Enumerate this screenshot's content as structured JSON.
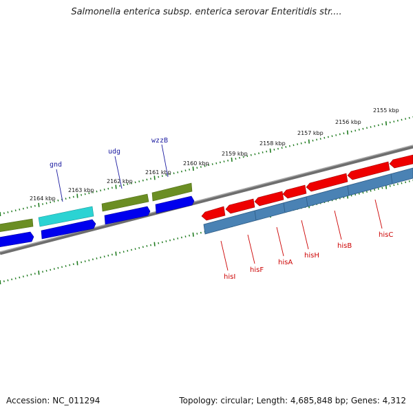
{
  "header": {
    "title": "Salmonella enterica subsp. enterica serovar Enteritidis str...."
  },
  "footer": {
    "accession": "Accession: NC_011294",
    "summary": "Topology: circular; Length: 4,685,848 bp; Genes: 4,312"
  },
  "colors": {
    "backbone": "#777777",
    "tick": "#1e7a1e",
    "gene_olive": "#6b8e23",
    "gene_cyan": "#2bd3d3",
    "gene_blue": "#0000ee",
    "gene_red": "#ee0000",
    "gene_steel": "#4a82b4",
    "label_top": "#1a1aa0",
    "label_bottom": "#cc0000"
  },
  "coordinate_labels": [
    "2155 kbp",
    "2156 kbp",
    "2157 kbp",
    "2158 kbp",
    "2159 kbp",
    "2160 kbp",
    "2161 kbp",
    "2162 kbp",
    "2163 kbp",
    "2164 kbp"
  ],
  "gene_labels_upper": [
    "gnd",
    "udg",
    "wzzB"
  ],
  "gene_labels_lower": [
    "hisI",
    "hisF",
    "hisA",
    "hisH",
    "hisB",
    "hisC"
  ]
}
